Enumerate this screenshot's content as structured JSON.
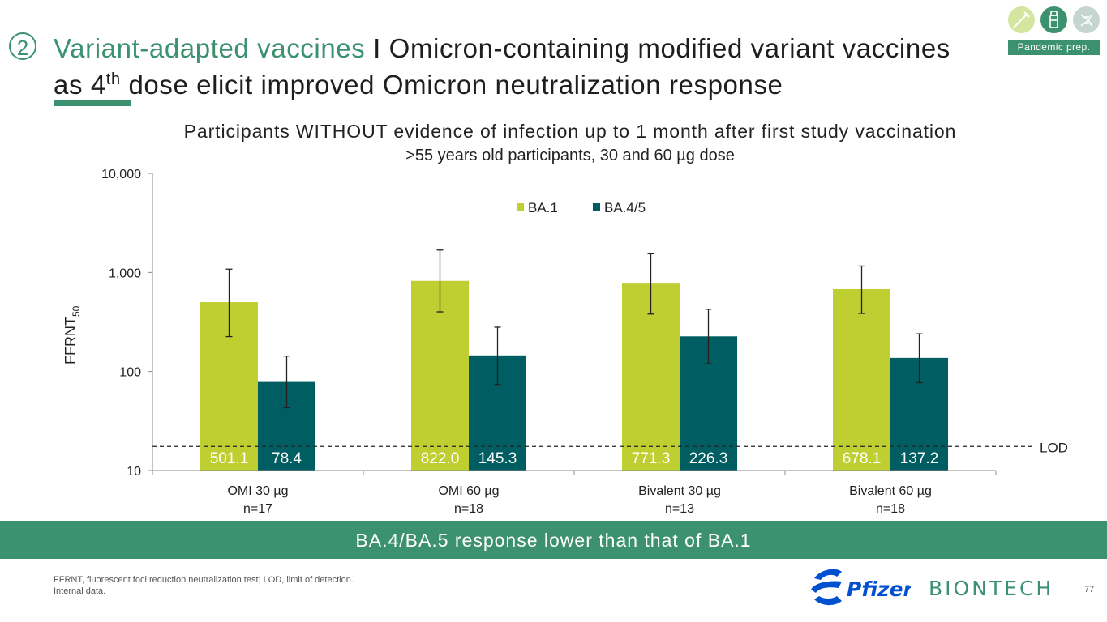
{
  "header": {
    "section_number": "2",
    "title_accent": "Variant-adapted vaccines",
    "title_sep": " I ",
    "title_main_1": "Omicron-containing modified variant vaccines as 4",
    "title_sup": "th",
    "title_main_2": " dose elicit improved Omicron neutralization response",
    "badge": "Pandemic prep.",
    "icons": [
      "syringe-icon",
      "vial-icon",
      "dna-icon"
    ]
  },
  "colors": {
    "accent": "#3c9170",
    "ba1": "#bfcf32",
    "ba45": "#005d61"
  },
  "chart_data": {
    "type": "bar",
    "title": "Participants WITHOUT evidence of infection up to 1 month after first study vaccination",
    "subtitle": ">55 years old participants, 30 and 60 µg dose",
    "ylabel": "FFRNT",
    "ylabel_sub": "50",
    "yscale": "log",
    "ylim": [
      10,
      10000
    ],
    "yticks": [
      {
        "value": 10,
        "label": "10"
      },
      {
        "value": 100,
        "label": "100"
      },
      {
        "value": 1000,
        "label": "1,000"
      },
      {
        "value": 10000,
        "label": "10,000"
      }
    ],
    "categories": [
      {
        "name": "OMI 30  µg",
        "n": "n=17"
      },
      {
        "name": "OMI 60  µg",
        "n": "n=18"
      },
      {
        "name": "Bivalent 30  µg",
        "n": "n=13"
      },
      {
        "name": "Bivalent 60  µg",
        "n": "n=18"
      }
    ],
    "series": [
      {
        "name": "BA.1",
        "color": "#bfcf32",
        "values": [
          501.1,
          822.0,
          771.3,
          678.1
        ],
        "labels": [
          "501.1",
          "822.0",
          "771.3",
          "678.1"
        ],
        "err_low": [
          225,
          400,
          380,
          385
        ],
        "err_high": [
          1080,
          1680,
          1540,
          1160
        ]
      },
      {
        "name": "BA.4/5",
        "color": "#005d61",
        "values": [
          78.4,
          145.3,
          226.3,
          137.2
        ],
        "labels": [
          "78.4",
          "145.3",
          "226.3",
          "137.2"
        ],
        "err_low": [
          43,
          74,
          120,
          77
        ],
        "err_high": [
          143,
          280,
          425,
          240
        ]
      }
    ],
    "lod": {
      "label": "LOD",
      "value": 17.5
    },
    "legend_position": "top-center",
    "grid": false
  },
  "banner": "BA.4/BA.5 response lower than that of BA.1",
  "footnote": {
    "line1": "FFRNT, fluorescent foci reduction neutralization test; LOD, limit of detection.",
    "line2": "Internal data."
  },
  "page_number": "77",
  "logos": {
    "pfizer": "Pfizer",
    "biontech": "BIONTECH"
  }
}
